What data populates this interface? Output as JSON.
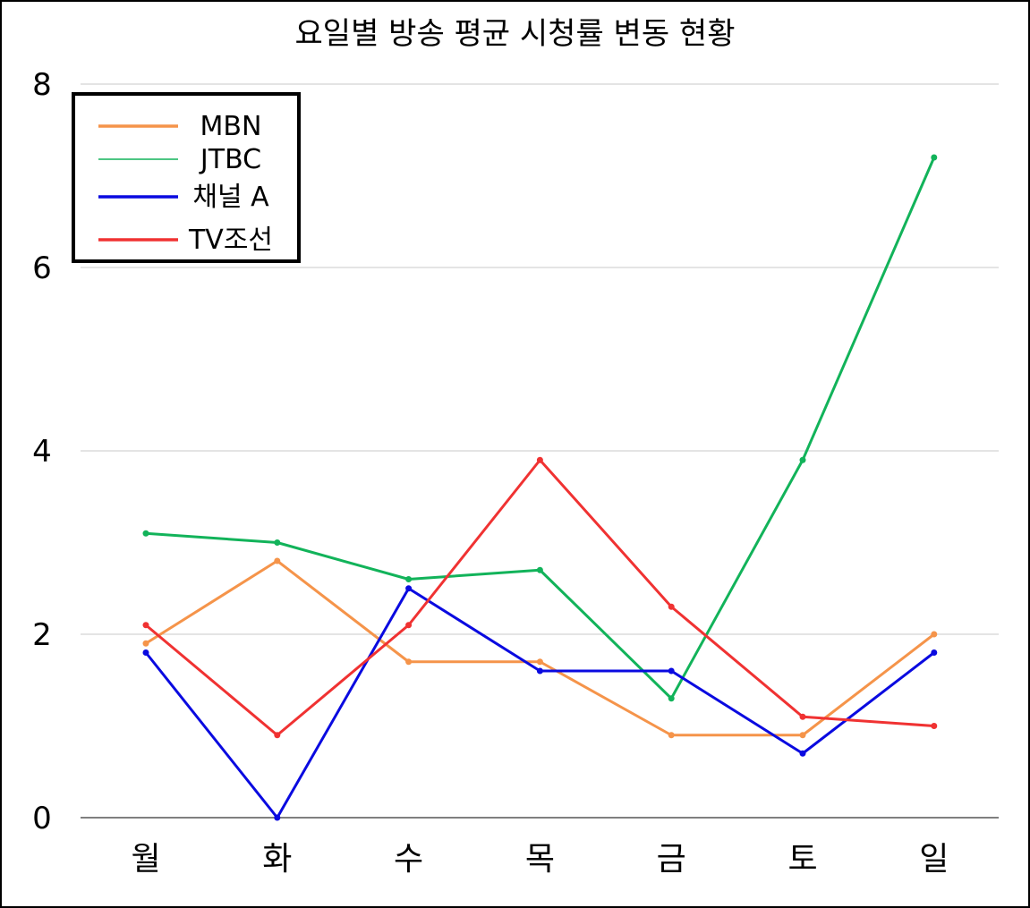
{
  "chart_data": {
    "type": "line",
    "title": "요일별 방송 평균 시청률 변동 현황",
    "categories": [
      "월",
      "화",
      "수",
      "목",
      "금",
      "토",
      "일"
    ],
    "ylim": [
      0,
      8
    ],
    "yticks": [
      0,
      2,
      4,
      6,
      8
    ],
    "grid": "horizontal",
    "legend_position": "top-left",
    "series": [
      {
        "name": "MBN",
        "color": "#f5944a",
        "values": [
          1.9,
          2.8,
          1.7,
          1.7,
          0.9,
          0.9,
          2.0
        ]
      },
      {
        "name": "JTBC",
        "color": "#12b35a",
        "values": [
          3.1,
          3.0,
          2.6,
          2.7,
          1.3,
          3.9,
          7.2
        ]
      },
      {
        "name": "채널 A",
        "color": "#0a0ae0",
        "values": [
          1.8,
          0.0,
          2.5,
          1.6,
          1.6,
          0.7,
          1.8
        ]
      },
      {
        "name": "TV조선",
        "color": "#f03232",
        "values": [
          2.1,
          0.9,
          2.1,
          3.9,
          2.3,
          1.1,
          1.0
        ]
      }
    ]
  }
}
